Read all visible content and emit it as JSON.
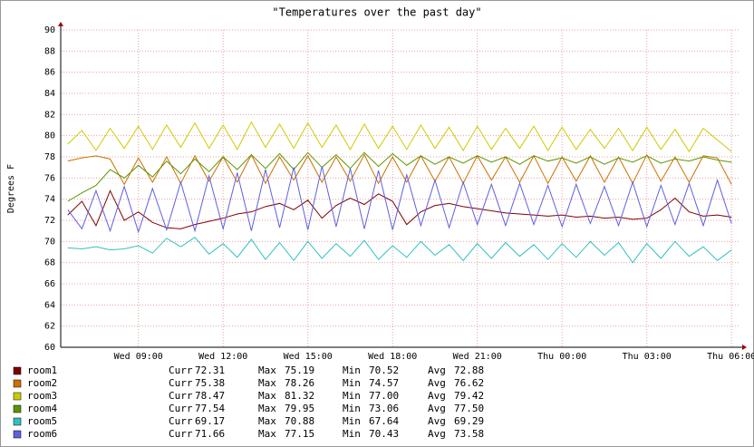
{
  "chart_data": {
    "type": "line",
    "title": "\"Temperatures over the past day\"",
    "ylabel": "Degrees F",
    "x": [
      6.5,
      7,
      7.5,
      8,
      8.5,
      9,
      9.5,
      10,
      10.5,
      11,
      11.5,
      12,
      12.5,
      13,
      13.5,
      14,
      14.5,
      15,
      15.5,
      16,
      16.5,
      17,
      17.5,
      18,
      18.5,
      19,
      19.5,
      20,
      20.5,
      21,
      21.5,
      22,
      22.5,
      23,
      23.5,
      24,
      24.5,
      25,
      25.5,
      26,
      26.5,
      27,
      27.5,
      28,
      28.5,
      29,
      29.5,
      30
    ],
    "xlim": [
      6.25,
      30.25
    ],
    "xticks": [
      {
        "value": 9,
        "label": "Wed 09:00"
      },
      {
        "value": 12,
        "label": "Wed 12:00"
      },
      {
        "value": 15,
        "label": "Wed 15:00"
      },
      {
        "value": 18,
        "label": "Wed 18:00"
      },
      {
        "value": 21,
        "label": "Wed 21:00"
      },
      {
        "value": 24,
        "label": "Thu 00:00"
      },
      {
        "value": 27,
        "label": "Thu 03:00"
      },
      {
        "value": 30,
        "label": "Thu 06:00"
      }
    ],
    "ylim": [
      60,
      90
    ],
    "yticks": [
      60,
      62,
      64,
      66,
      68,
      70,
      72,
      74,
      76,
      78,
      80,
      82,
      84,
      86,
      88,
      90
    ],
    "grid": true,
    "legend_columns": [
      "Curr",
      "Max",
      "Min",
      "Avg"
    ],
    "series": [
      {
        "name": "room1",
        "color": "#800000",
        "stats": [
          "72.31",
          "75.19",
          "70.52",
          "72.88"
        ],
        "values": [
          72.5,
          73.8,
          71.5,
          74.8,
          72.0,
          72.8,
          71.8,
          71.3,
          71.2,
          71.6,
          71.9,
          72.2,
          72.6,
          72.8,
          73.3,
          73.6,
          73.0,
          73.9,
          72.2,
          73.4,
          74.1,
          73.5,
          74.5,
          73.8,
          71.6,
          72.8,
          73.4,
          73.6,
          73.3,
          73.1,
          72.9,
          72.7,
          72.6,
          72.5,
          72.4,
          72.5,
          72.3,
          72.4,
          72.2,
          72.3,
          72.1,
          72.2,
          73.0,
          74.1,
          72.8,
          72.4,
          72.5,
          72.3
        ]
      },
      {
        "name": "room2",
        "color": "#cc7000",
        "stats": [
          "75.38",
          "78.26",
          "74.57",
          "76.62"
        ],
        "values": [
          77.6,
          77.9,
          78.1,
          77.8,
          75.4,
          77.9,
          75.6,
          78.0,
          75.5,
          78.1,
          75.7,
          78.0,
          75.6,
          78.2,
          75.5,
          78.0,
          75.8,
          78.1,
          75.6,
          78.0,
          75.7,
          78.2,
          75.5,
          78.0,
          75.6,
          78.1,
          75.7,
          78.0,
          75.5,
          78.1,
          75.8,
          78.0,
          75.6,
          78.1,
          75.5,
          78.0,
          75.7,
          78.1,
          75.6,
          78.0,
          75.5,
          78.2,
          75.7,
          78.0,
          75.6,
          78.1,
          77.9,
          75.4
        ]
      },
      {
        "name": "room3",
        "color": "#cccc00",
        "stats": [
          "78.47",
          "81.32",
          "77.00",
          "79.42"
        ],
        "values": [
          79.2,
          80.5,
          78.6,
          80.7,
          78.8,
          80.9,
          78.7,
          81.0,
          78.9,
          81.2,
          78.8,
          81.0,
          78.7,
          81.3,
          78.9,
          81.1,
          78.8,
          81.2,
          78.9,
          81.0,
          78.7,
          81.1,
          78.8,
          80.9,
          78.7,
          81.0,
          78.8,
          80.8,
          78.6,
          80.9,
          78.7,
          80.7,
          78.8,
          80.9,
          78.6,
          80.8,
          78.7,
          80.6,
          78.8,
          80.7,
          78.6,
          80.8,
          78.7,
          80.6,
          78.5,
          80.7,
          79.6,
          78.5
        ]
      },
      {
        "name": "room4",
        "color": "#5a9600",
        "stats": [
          "77.54",
          "79.95",
          "73.06",
          "77.50"
        ],
        "values": [
          73.8,
          74.6,
          75.3,
          76.8,
          76.0,
          77.2,
          76.1,
          77.6,
          76.4,
          77.8,
          76.6,
          78.0,
          76.8,
          78.2,
          76.9,
          78.3,
          76.8,
          78.4,
          77.0,
          78.2,
          76.9,
          78.4,
          77.1,
          78.3,
          77.2,
          78.1,
          77.3,
          78.0,
          77.4,
          78.1,
          77.5,
          78.0,
          77.3,
          78.1,
          77.6,
          77.9,
          77.4,
          78.0,
          77.3,
          77.9,
          77.5,
          78.1,
          77.4,
          77.8,
          77.6,
          78.0,
          77.7,
          77.5
        ]
      },
      {
        "name": "room5",
        "color": "#33c0c0",
        "stats": [
          "69.17",
          "70.88",
          "67.64",
          "69.29"
        ],
        "values": [
          69.4,
          69.3,
          69.5,
          69.2,
          69.3,
          69.6,
          68.9,
          70.3,
          69.5,
          70.4,
          68.8,
          69.8,
          68.5,
          70.2,
          68.3,
          69.9,
          68.2,
          70.0,
          68.4,
          69.8,
          68.6,
          70.1,
          68.3,
          69.6,
          68.5,
          70.0,
          68.7,
          69.7,
          68.2,
          69.8,
          68.4,
          69.9,
          68.6,
          69.7,
          68.3,
          69.8,
          68.5,
          70.0,
          68.7,
          69.9,
          68.0,
          69.8,
          68.4,
          70.0,
          68.6,
          69.5,
          68.2,
          69.2
        ]
      },
      {
        "name": "room6",
        "color": "#6060e0",
        "stats": [
          "71.66",
          "77.15",
          "70.43",
          "73.58"
        ],
        "values": [
          73.0,
          71.2,
          74.8,
          71.0,
          75.2,
          70.9,
          75.0,
          71.1,
          75.6,
          71.0,
          76.2,
          71.2,
          76.5,
          71.0,
          76.8,
          71.3,
          77.0,
          71.1,
          77.1,
          71.4,
          76.9,
          71.2,
          76.7,
          71.1,
          76.3,
          71.5,
          75.8,
          71.3,
          75.6,
          71.6,
          75.4,
          71.5,
          75.5,
          71.6,
          75.3,
          71.4,
          75.4,
          71.7,
          75.2,
          71.5,
          75.6,
          71.4,
          75.3,
          71.6,
          75.5,
          71.5,
          75.8,
          71.7
        ]
      }
    ]
  }
}
